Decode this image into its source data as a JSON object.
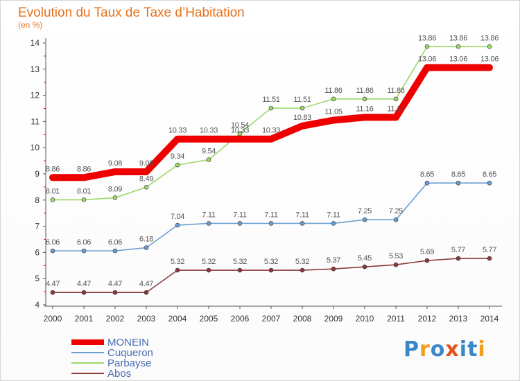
{
  "header": {
    "title": "Evolution du Taux de Taxe d’Habitation",
    "subtitle": "(en %)"
  },
  "logo": {
    "text": "Proxiti",
    "letter_colors": [
      "#3a87c8",
      "#f0a020",
      "#3a87c8",
      "#e8501a",
      "#3a87c8",
      "#3a87c8",
      "#f0a020"
    ]
  },
  "chart_data": {
    "type": "line",
    "categories": [
      "2000",
      "2001",
      "2002",
      "2003",
      "2004",
      "2005",
      "2006",
      "2007",
      "2008",
      "2009",
      "2010",
      "2011",
      "2012",
      "2013",
      "2014"
    ],
    "ylim": [
      4,
      14
    ],
    "yticks": [
      4,
      5,
      6,
      7,
      8,
      9,
      10,
      11,
      12,
      13,
      14
    ],
    "grid": false,
    "legend_position": "bottom-left",
    "series": [
      {
        "name": "MONEIN",
        "color": "#ee0000",
        "emphasis": true,
        "values": [
          8.86,
          8.86,
          9.08,
          9.08,
          10.33,
          10.33,
          10.33,
          10.33,
          10.83,
          11.05,
          11.16,
          11.16,
          13.06,
          13.06,
          13.06
        ],
        "labels": [
          "8.86",
          "8.86",
          "9.08",
          "9.08",
          "10.33",
          "10.33",
          "10.33",
          "10.33",
          "10.83",
          "11.05",
          "11.16",
          "11.16",
          "13.06",
          "13.06",
          "13.06"
        ]
      },
      {
        "name": "Cuqueron",
        "color": "#6b9fd4",
        "values": [
          6.06,
          6.06,
          6.06,
          6.18,
          7.04,
          7.11,
          7.11,
          7.11,
          7.11,
          7.11,
          7.25,
          7.25,
          8.65,
          8.65,
          8.65
        ],
        "labels": [
          "6.06",
          "6.06",
          "6.06",
          "6.18",
          "7.04",
          "7.11",
          "7.11",
          "7.11",
          "7.11",
          "7.11",
          "7.25",
          "7.25",
          "8.65",
          "8.65",
          "8.65"
        ]
      },
      {
        "name": "Parbayse",
        "color": "#9dd86a",
        "values": [
          8.01,
          8.01,
          8.09,
          8.49,
          9.34,
          9.54,
          10.54,
          11.51,
          11.51,
          11.86,
          11.86,
          11.86,
          13.86,
          13.86,
          13.86
        ],
        "labels": [
          "8.01",
          "8.01",
          "8.09",
          "8.49",
          "9.34",
          "9.54",
          "10.54",
          "11.51",
          "11.51",
          "11.86",
          "11.86",
          "11.86",
          "13.86",
          "13.86",
          "13.86"
        ]
      },
      {
        "name": "Abos",
        "color": "#8b3a3a",
        "values": [
          4.47,
          4.47,
          4.47,
          4.47,
          5.32,
          5.32,
          5.32,
          5.32,
          5.32,
          5.37,
          5.45,
          5.53,
          5.69,
          5.77,
          5.77
        ],
        "labels": [
          "4.47",
          "4.47",
          "4.47",
          "4.47",
          "5.32",
          "5.32",
          "5.32",
          "5.32",
          "5.32",
          "5.37",
          "5.45",
          "5.53",
          "5.69",
          "5.77",
          "5.77"
        ]
      }
    ]
  }
}
